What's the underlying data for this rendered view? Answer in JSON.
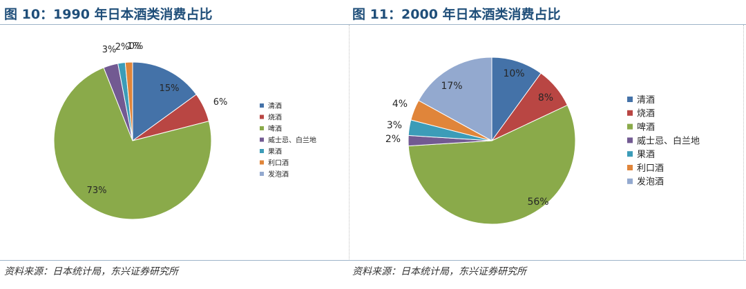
{
  "panels": [
    {
      "title": "图 10：1990 年日本酒类消费占比",
      "source": "资料来源：日本统计局，东兴证券研究所"
    },
    {
      "title": "图 11：2000 年日本酒类消费占比",
      "source": "资料来源：日本统计局，东兴证券研究所"
    }
  ],
  "chart_data": [
    {
      "type": "pie",
      "title": "图 10：1990 年日本酒类消费占比",
      "categories": [
        "清酒",
        "烧酒",
        "啤酒",
        "威士忌、白兰地",
        "果酒",
        "利口酒",
        "发泡酒"
      ],
      "values": [
        15,
        6,
        73,
        3,
        1.5,
        1.5,
        0
      ],
      "data_labels": [
        "15%",
        "6%",
        "73%",
        "3%",
        "2%",
        "1%",
        "0%"
      ],
      "colors": [
        "#4472a8",
        "#b94643",
        "#8aaa4a",
        "#725a92",
        "#3c9cb8",
        "#e0853a",
        "#93a9cf"
      ],
      "legend_position": "right"
    },
    {
      "type": "pie",
      "title": "图 11：2000 年日本酒类消费占比",
      "categories": [
        "清酒",
        "烧酒",
        "啤酒",
        "威士忌、白兰地",
        "果酒",
        "利口酒",
        "发泡酒"
      ],
      "values": [
        10,
        8,
        56,
        2,
        3,
        4,
        17
      ],
      "data_labels": [
        "10%",
        "8%",
        "56%",
        "2%",
        "3%",
        "4%",
        "17%"
      ],
      "colors": [
        "#4472a8",
        "#b94643",
        "#8aaa4a",
        "#725a92",
        "#3c9cb8",
        "#e0853a",
        "#93a9cf"
      ],
      "legend_position": "right"
    }
  ]
}
